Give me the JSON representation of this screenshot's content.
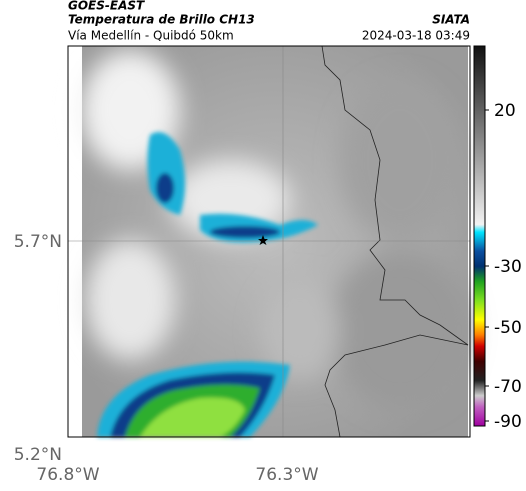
{
  "header": {
    "source": "GOES-EAST",
    "title": "Temperatura de Brillo CH13",
    "organization": "SIATA",
    "location": "Vía Medellín - Quibdó 50km",
    "timestamp": "2024-03-18 03:49"
  },
  "map": {
    "lat_labels": [
      "5.7°N",
      "5.2°N"
    ],
    "lon_labels": [
      "76.8°W",
      "76.3°W"
    ]
  },
  "colorbar": {
    "labels": [
      "20",
      "-30",
      "-50",
      "-70",
      "-90"
    ]
  }
}
